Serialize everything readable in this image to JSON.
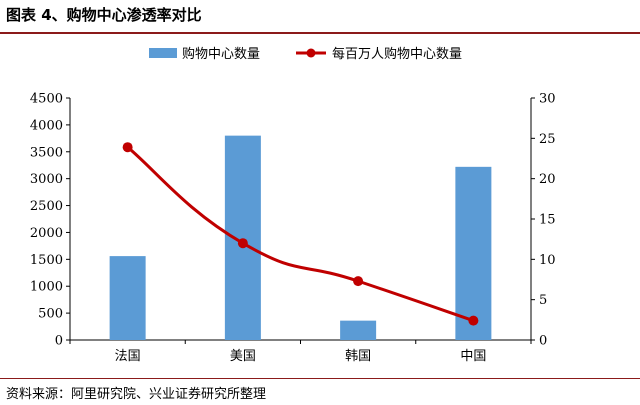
{
  "header": {
    "title": "图表 4、购物中心渗透率对比"
  },
  "footer": {
    "source": "资料来源：阿里研究院、兴业证券研究所整理"
  },
  "colors": {
    "bar": "#5b9bd5",
    "line": "#c00000",
    "rule": "#8b1a1a"
  },
  "chart_data": {
    "type": "bar",
    "categories": [
      "法国",
      "美国",
      "韩国",
      "中国"
    ],
    "series": [
      {
        "name": "购物中心数量",
        "type": "bar",
        "axis": "left",
        "values": [
          1560,
          3800,
          360,
          3220
        ]
      },
      {
        "name": "每百万人购物中心数量",
        "type": "line",
        "axis": "right",
        "values": [
          23.9,
          12.0,
          7.3,
          2.4
        ]
      }
    ],
    "y_left": {
      "min": 0,
      "max": 4500,
      "step": 500
    },
    "y_right": {
      "min": 0,
      "max": 30,
      "step": 5
    },
    "legend_position": "top-center",
    "grid": false
  }
}
